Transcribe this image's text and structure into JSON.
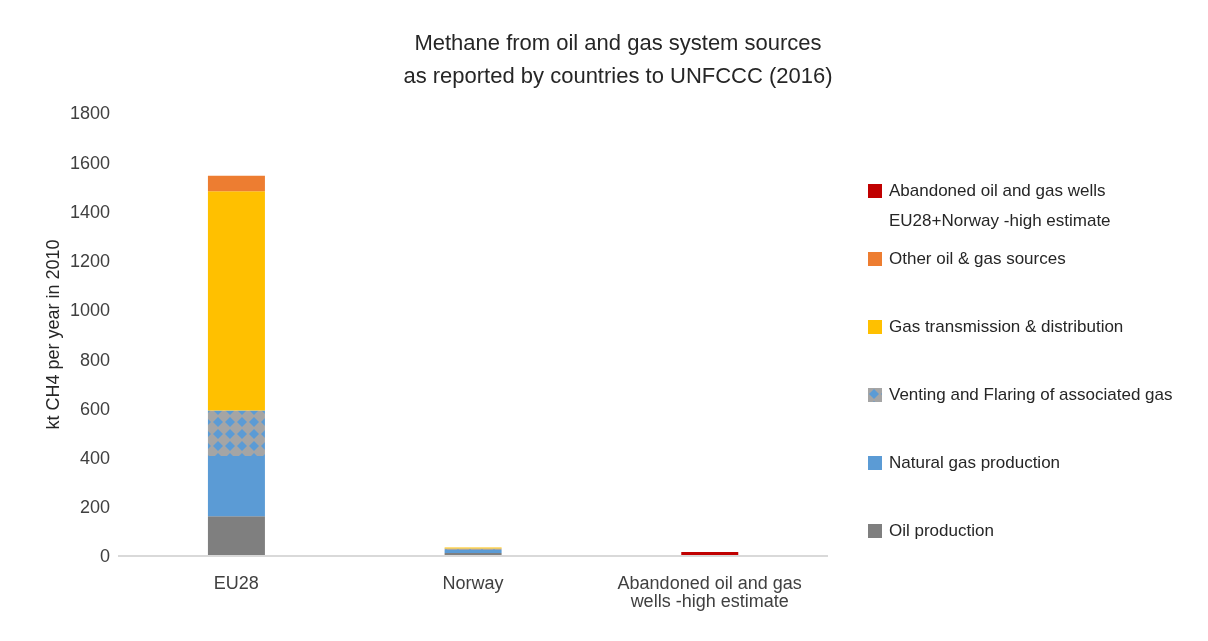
{
  "chart_data": {
    "type": "bar",
    "title": "Methane from oil and gas system sources\nas reported by countries to UNFCCC (2016)",
    "ylabel": "kt CH4 per year in 2010",
    "categories": [
      "EU28",
      "Norway",
      "Abandoned oil and gas wells -high estimate"
    ],
    "stacked": true,
    "ylim": [
      0,
      1800
    ],
    "yticks": [
      0,
      200,
      400,
      600,
      800,
      1000,
      1200,
      1400,
      1600,
      1800
    ],
    "grid": false,
    "legend": "right",
    "series": [
      {
        "name": "Oil production",
        "color": "#7f7f7f",
        "values": [
          162,
          12,
          null
        ]
      },
      {
        "name": "Natural gas production",
        "color": "#5b9bd5",
        "values": [
          244,
          12,
          null
        ]
      },
      {
        "name": "Venting and Flaring of associated gas",
        "color": "#a5a5a5",
        "values": [
          185,
          6,
          null
        ]
      },
      {
        "name": "Gas transmission & distribution",
        "color": "#ffc000",
        "values": [
          891,
          5,
          null
        ]
      },
      {
        "name": "Other oil & gas sources",
        "color": "#ed7d31",
        "values": [
          63,
          null,
          null
        ]
      },
      {
        "name": "Abandoned oil and gas wells EU28+Norway -high estimate",
        "color": "#c00000",
        "values": [
          null,
          null,
          16
        ]
      }
    ]
  }
}
